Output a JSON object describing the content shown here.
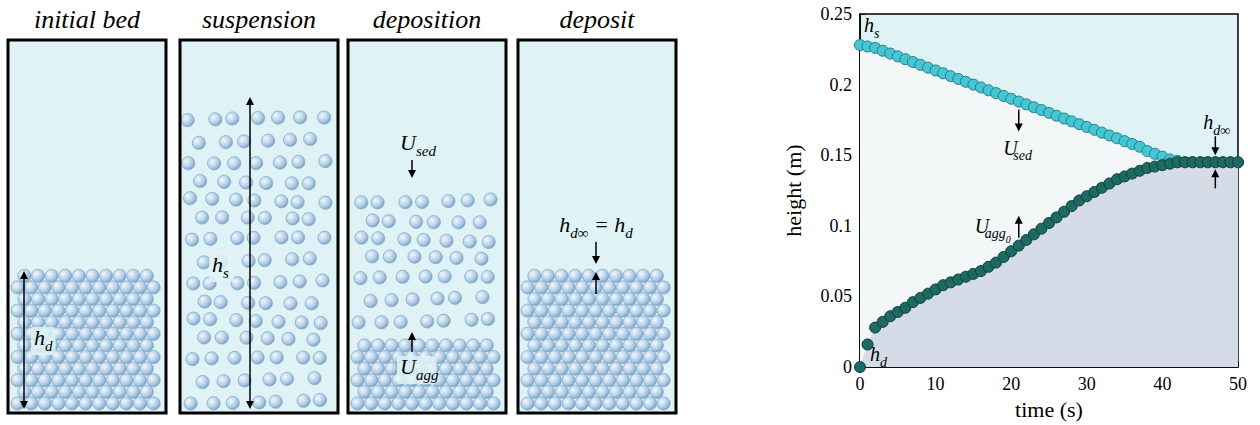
{
  "diagram": {
    "panels": [
      {
        "title": "initial bed",
        "labels": [
          [
            {
              "text": "h",
              "sub": "d"
            }
          ]
        ]
      },
      {
        "title": "suspension",
        "labels": [
          [
            {
              "text": "h",
              "sub": "s"
            }
          ]
        ]
      },
      {
        "title": "deposition",
        "labels": [
          [
            {
              "text": "U",
              "sub": "sed"
            }
          ],
          [
            {
              "text": "U",
              "sub": "agg"
            }
          ]
        ]
      },
      {
        "title": "deposit",
        "labels": [
          [
            {
              "text": "h",
              "sub": "d∞"
            },
            {
              "text": " = h",
              "sub": "d"
            }
          ]
        ]
      }
    ]
  },
  "chart_data": {
    "type": "scatter",
    "xlabel": "time (s)",
    "ylabel": "height (m)",
    "x": [
      0,
      1,
      2,
      3,
      4,
      5,
      6,
      7,
      8,
      9,
      10,
      11,
      12,
      13,
      14,
      15,
      16,
      17,
      18,
      19,
      20,
      21,
      22,
      23,
      24,
      25,
      26,
      27,
      28,
      29,
      30,
      31,
      32,
      33,
      34,
      35,
      36,
      37,
      38,
      39,
      40,
      41,
      42,
      43,
      44,
      45,
      46,
      47,
      48,
      49,
      50
    ],
    "xlim": [
      0,
      50
    ],
    "xticks": [
      0,
      10,
      20,
      30,
      40,
      50
    ],
    "ylim": [
      0,
      0.25
    ],
    "yticks": [
      0,
      0.05,
      0.1,
      0.15,
      0.2,
      0.25
    ],
    "grid": false,
    "series": [
      {
        "color": "#45c6d2",
        "marker": "circle",
        "values": [
          0.228,
          0.227,
          0.226,
          0.224,
          0.222,
          0.22,
          0.218,
          0.216,
          0.214,
          0.212,
          0.21,
          0.208,
          0.206,
          0.204,
          0.202,
          0.2,
          0.198,
          0.196,
          0.194,
          0.192,
          0.19,
          0.188,
          0.186,
          0.184,
          0.182,
          0.18,
          0.178,
          0.176,
          0.174,
          0.172,
          0.17,
          0.168,
          0.166,
          0.164,
          0.162,
          0.16,
          0.158,
          0.156,
          0.153,
          0.151,
          0.149,
          0.147,
          0.146,
          0.145,
          0.145,
          0.145,
          0.145,
          0.145,
          0.145,
          0.145,
          0.145
        ]
      },
      {
        "color": "#1d6a62",
        "marker": "circle",
        "values": [
          0,
          0.016,
          0.028,
          0.032,
          0.036,
          0.039,
          0.042,
          0.046,
          0.049,
          0.052,
          0.055,
          0.058,
          0.06,
          0.062,
          0.064,
          0.066,
          0.068,
          0.071,
          0.074,
          0.078,
          0.082,
          0.086,
          0.09,
          0.094,
          0.098,
          0.102,
          0.106,
          0.11,
          0.114,
          0.118,
          0.121,
          0.124,
          0.127,
          0.13,
          0.133,
          0.135,
          0.137,
          0.139,
          0.141,
          0.142,
          0.143,
          0.144,
          0.145,
          0.145,
          0.145,
          0.145,
          0.145,
          0.145,
          0.145,
          0.145,
          0.145
        ]
      }
    ],
    "annotations": [
      [
        {
          "text": "h",
          "sub": "s"
        }
      ],
      [
        {
          "text": "U",
          "sub": "sed"
        }
      ],
      [
        {
          "text": "U",
          "sub": "agg",
          "subsub": "0"
        }
      ],
      [
        {
          "text": "h",
          "sub": "d∞"
        }
      ],
      [
        {
          "text": "h",
          "sub": "d"
        }
      ]
    ]
  }
}
